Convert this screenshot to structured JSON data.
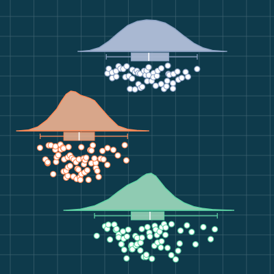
{
  "chart_data": {
    "type": "raincloud",
    "orientation": "horizontal",
    "title": "",
    "xlabel": "",
    "ylabel": "",
    "xlim": [
      0,
      1
    ],
    "grid": true,
    "legend": "none",
    "colors": {
      "background": "#0e3a4b",
      "grid": "#3f6371",
      "point_fill": "#ffffff"
    },
    "series": [
      {
        "name": "",
        "fill": "#a9b8d2",
        "stroke": "#8fa4c6",
        "box": {
          "min": 0.41,
          "q1": 0.515,
          "median": 0.59,
          "q3": 0.675,
          "max": 0.795
        },
        "density": {
          "x": [
            0.3,
            0.34,
            0.38,
            0.42,
            0.46,
            0.5,
            0.54,
            0.58,
            0.62,
            0.66,
            0.7,
            0.74,
            0.78,
            0.82,
            0.86,
            0.91
          ],
          "y": [
            0.0,
            0.03,
            0.12,
            0.32,
            0.58,
            0.82,
            0.95,
            1.0,
            0.98,
            0.9,
            0.72,
            0.48,
            0.26,
            0.11,
            0.03,
            0.0
          ]
        },
        "points": [
          0.415,
          0.425,
          0.435,
          0.44,
          0.45,
          0.455,
          0.46,
          0.47,
          0.48,
          0.49,
          0.5,
          0.505,
          0.51,
          0.515,
          0.52,
          0.53,
          0.535,
          0.54,
          0.545,
          0.55,
          0.555,
          0.56,
          0.565,
          0.57,
          0.575,
          0.58,
          0.585,
          0.59,
          0.595,
          0.6,
          0.605,
          0.61,
          0.62,
          0.625,
          0.63,
          0.64,
          0.645,
          0.65,
          0.66,
          0.665,
          0.67,
          0.675,
          0.68,
          0.69,
          0.695,
          0.7,
          0.71,
          0.72,
          0.73,
          0.745,
          0.76,
          0.79
        ]
      },
      {
        "name": "",
        "fill": "#d8a68a",
        "stroke": "#ff8a57",
        "box": {
          "min": 0.13,
          "q1": 0.23,
          "median": 0.295,
          "q3": 0.36,
          "max": 0.5
        },
        "density": {
          "x": [
            0.04,
            0.08,
            0.12,
            0.16,
            0.2,
            0.22,
            0.24,
            0.26,
            0.28,
            0.3,
            0.32,
            0.34,
            0.36,
            0.38,
            0.42,
            0.46,
            0.5,
            0.54,
            0.58
          ],
          "y": [
            0.0,
            0.02,
            0.1,
            0.28,
            0.55,
            0.75,
            0.92,
            1.0,
            0.98,
            0.9,
            0.86,
            0.82,
            0.76,
            0.62,
            0.35,
            0.12,
            0.04,
            0.01,
            0.0
          ]
        },
        "points": [
          0.135,
          0.15,
          0.16,
          0.165,
          0.17,
          0.18,
          0.185,
          0.19,
          0.195,
          0.2,
          0.205,
          0.21,
          0.215,
          0.22,
          0.225,
          0.23,
          0.232,
          0.235,
          0.24,
          0.242,
          0.245,
          0.25,
          0.252,
          0.255,
          0.26,
          0.262,
          0.265,
          0.27,
          0.272,
          0.275,
          0.28,
          0.283,
          0.285,
          0.29,
          0.292,
          0.295,
          0.3,
          0.303,
          0.305,
          0.31,
          0.312,
          0.315,
          0.32,
          0.325,
          0.33,
          0.335,
          0.34,
          0.345,
          0.35,
          0.355,
          0.36,
          0.365,
          0.37,
          0.375,
          0.38,
          0.385,
          0.39,
          0.4,
          0.41,
          0.42,
          0.44,
          0.46,
          0.49,
          0.5
        ]
      },
      {
        "name": "",
        "fill": "#8fcbb2",
        "stroke": "#5fd6a6",
        "box": {
          "min": 0.36,
          "q1": 0.515,
          "median": 0.595,
          "q3": 0.655,
          "max": 0.88
        },
        "density": {
          "x": [
            0.24,
            0.3,
            0.36,
            0.42,
            0.46,
            0.5,
            0.52,
            0.54,
            0.56,
            0.58,
            0.6,
            0.62,
            0.64,
            0.66,
            0.7,
            0.74,
            0.78,
            0.82,
            0.86,
            0.9,
            0.94
          ],
          "y": [
            0.0,
            0.03,
            0.12,
            0.3,
            0.5,
            0.68,
            0.74,
            0.8,
            0.9,
            0.98,
            1.0,
            0.92,
            0.76,
            0.6,
            0.36,
            0.2,
            0.1,
            0.05,
            0.02,
            0.01,
            0.0
          ]
        },
        "points": [
          0.37,
          0.4,
          0.415,
          0.42,
          0.43,
          0.44,
          0.45,
          0.455,
          0.46,
          0.465,
          0.47,
          0.475,
          0.48,
          0.485,
          0.49,
          0.495,
          0.5,
          0.505,
          0.51,
          0.515,
          0.52,
          0.525,
          0.53,
          0.535,
          0.54,
          0.545,
          0.55,
          0.555,
          0.56,
          0.565,
          0.57,
          0.575,
          0.58,
          0.585,
          0.59,
          0.595,
          0.6,
          0.605,
          0.61,
          0.615,
          0.62,
          0.625,
          0.63,
          0.635,
          0.64,
          0.645,
          0.65,
          0.655,
          0.66,
          0.665,
          0.67,
          0.68,
          0.69,
          0.7,
          0.71,
          0.72,
          0.73,
          0.75,
          0.77,
          0.79,
          0.82,
          0.85,
          0.875
        ]
      }
    ]
  }
}
